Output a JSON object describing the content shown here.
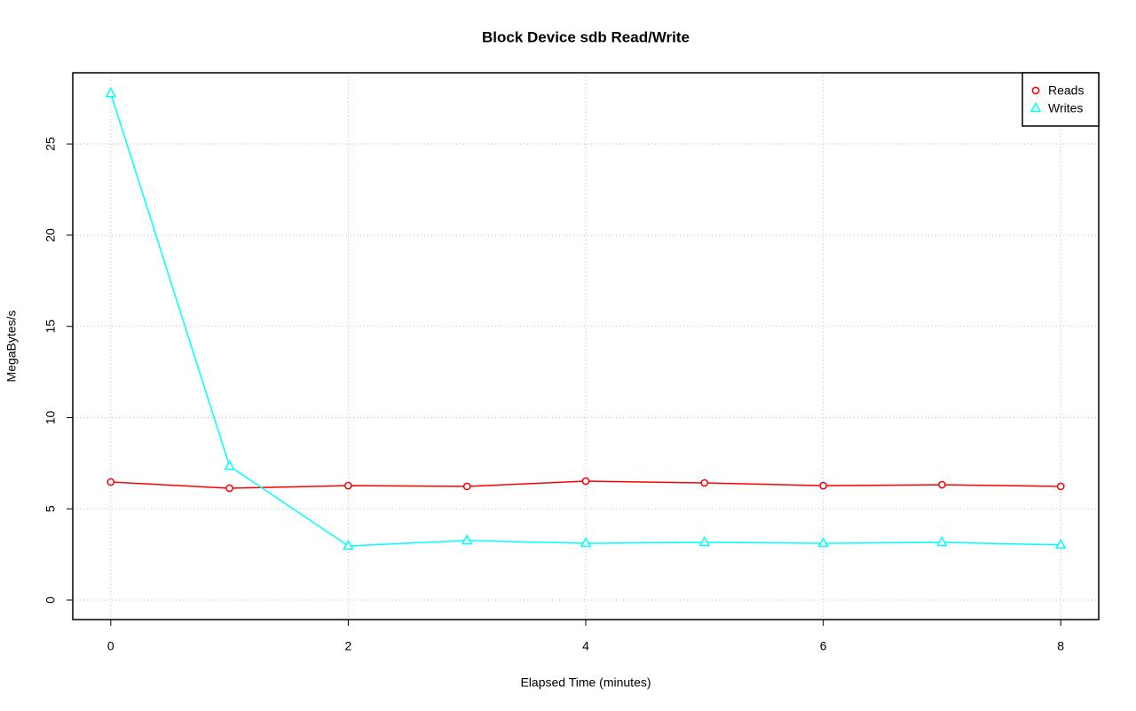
{
  "chart_data": {
    "type": "line",
    "title": "Block Device sdb Read/Write",
    "x_label": "Elapsed Time (minutes)",
    "y_label": "MegaBytes/s",
    "x": [
      0,
      1,
      2,
      3,
      4,
      5,
      6,
      7,
      8
    ],
    "series": [
      {
        "name": "Reads",
        "color": "#ff0000",
        "marker": "circle",
        "values": [
          6.47,
          6.13,
          6.27,
          6.23,
          6.52,
          6.42,
          6.27,
          6.32,
          6.23
        ]
      },
      {
        "name": "Writes",
        "color": "#00ffff",
        "marker": "triangle",
        "values": [
          27.77,
          7.34,
          2.97,
          3.26,
          3.11,
          3.16,
          3.11,
          3.16,
          3.02
        ]
      }
    ],
    "xlim": [
      -0.32,
      8.32
    ],
    "xticks": [
      0,
      2,
      4,
      6,
      8
    ],
    "ylim": [
      -1.07,
      28.9
    ],
    "yticks": [
      0,
      5,
      10,
      15,
      20,
      25
    ],
    "grid": true,
    "legend": "top-right"
  }
}
